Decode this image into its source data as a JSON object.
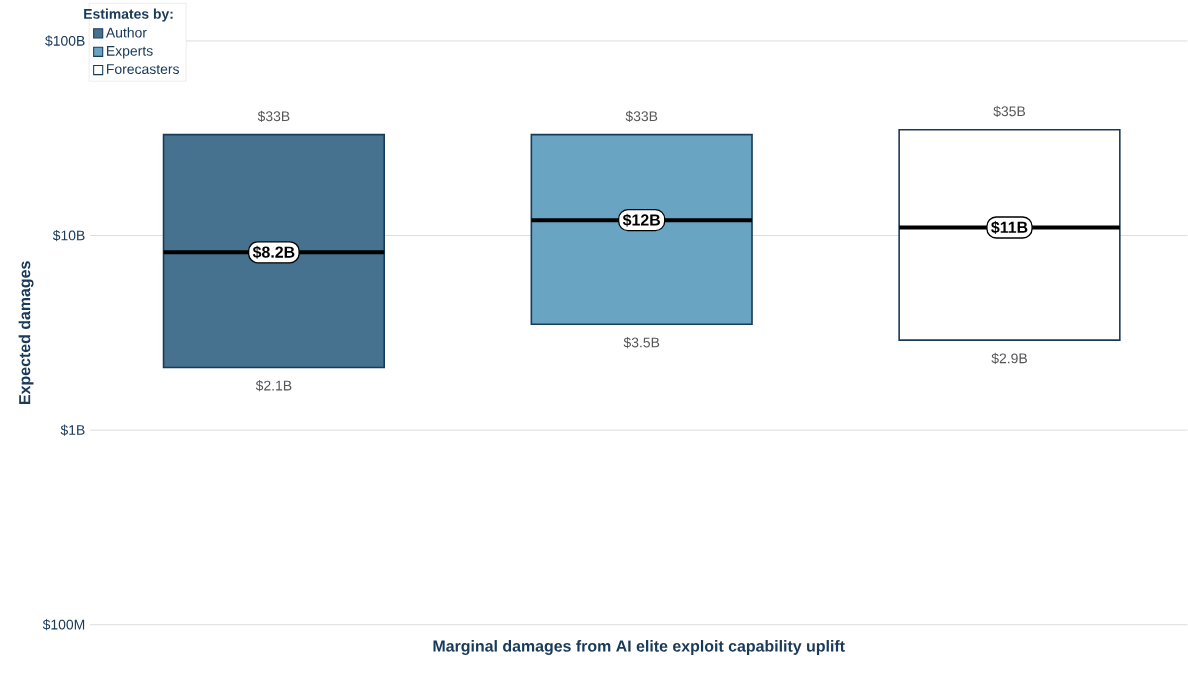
{
  "chart_data": {
    "type": "box",
    "xlabel": "Marginal damages from AI elite exploit capability uplift",
    "ylabel": "Expected damages",
    "legend_title": "Estimates by:",
    "categories": [
      null,
      null,
      null
    ],
    "series": [
      {
        "name": "Author",
        "color": "#46728f",
        "boxes": [
          {
            "low": 2100000000,
            "q1": 2100000000,
            "median": 8200000000,
            "q3": 33000000000,
            "high": 33000000000
          },
          null,
          null
        ]
      },
      {
        "name": "Experts",
        "color": "#69a5c3",
        "boxes": [
          null,
          {
            "low": 3500000000,
            "q1": 3500000000,
            "median": 12000000000,
            "q3": 33000000000,
            "high": 33000000000
          },
          null
        ]
      },
      {
        "name": "Forecasters",
        "color": "#ffffff",
        "boxes": [
          null,
          null,
          {
            "low": 2900000000,
            "q1": 2900000000,
            "median": 11000000000,
            "q3": 35000000000,
            "high": 35000000000
          }
        ]
      }
    ],
    "log": "y",
    "ylim": [
      100000000,
      100000000000
    ],
    "yticks": [
      {
        "value": 100000000,
        "label": "$100M"
      },
      {
        "value": 1000000000,
        "label": "$1B"
      },
      {
        "value": 10000000000,
        "label": "$10B"
      },
      {
        "value": 100000000000,
        "label": "$100B"
      }
    ],
    "grid": "y",
    "legend": "top left",
    "annotations": [
      {
        "text": "$33B",
        "y": 33000000000
      },
      {
        "text": "$8.2B",
        "y": 8200000000
      },
      {
        "text": "$2.1B",
        "y": 2100000000
      },
      {
        "text": "$33B",
        "y": 33000000000
      },
      {
        "text": "$12B",
        "y": 12000000000
      },
      {
        "text": "$3.5B",
        "y": 3500000000
      },
      {
        "text": "$35B",
        "y": 35000000000
      },
      {
        "text": "$11B",
        "y": 11000000000
      },
      {
        "text": "$2.9B",
        "y": 2900000000
      }
    ]
  }
}
